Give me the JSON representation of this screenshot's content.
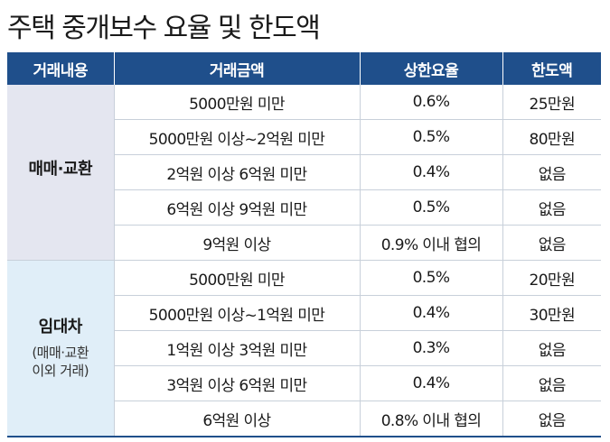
{
  "title": "주택 중개보수 요율 및 한도액",
  "colors": {
    "header_bg": "#1f4f8b",
    "sale_bg": "#e4e6f0",
    "lease_bg": "#e0eef8"
  },
  "headers": [
    "거래내용",
    "거래금액",
    "상한요율",
    "한도액"
  ],
  "sections": [
    {
      "category": "매매·교환",
      "category_sub_lines": [],
      "rows": [
        {
          "amount": "5000만원 미만",
          "rate": "0.6%",
          "limit": "25만원"
        },
        {
          "amount": "5000만원 이상~2억원 미만",
          "rate": "0.5%",
          "limit": "80만원"
        },
        {
          "amount": "2억원 이상 6억원 미만",
          "rate": "0.4%",
          "limit": "없음"
        },
        {
          "amount": "6억원 이상 9억원 미만",
          "rate": "0.5%",
          "limit": "없음"
        },
        {
          "amount": "9억원 이상",
          "rate": "0.9% 이내 협의",
          "limit": "없음"
        }
      ]
    },
    {
      "category": "임대차",
      "category_sub_lines": [
        "(매매·교환",
        "이외 거래)"
      ],
      "rows": [
        {
          "amount": "5000만원 미만",
          "rate": "0.5%",
          "limit": "20만원"
        },
        {
          "amount": "5000만원 이상~1억원 미만",
          "rate": "0.4%",
          "limit": "30만원"
        },
        {
          "amount": "1억원 이상 3억원 미만",
          "rate": "0.3%",
          "limit": "없음"
        },
        {
          "amount": "3억원 이상 6억원 미만",
          "rate": "0.4%",
          "limit": "없음"
        },
        {
          "amount": "6억원 이상",
          "rate": "0.8% 이내 협의",
          "limit": "없음"
        }
      ]
    }
  ]
}
